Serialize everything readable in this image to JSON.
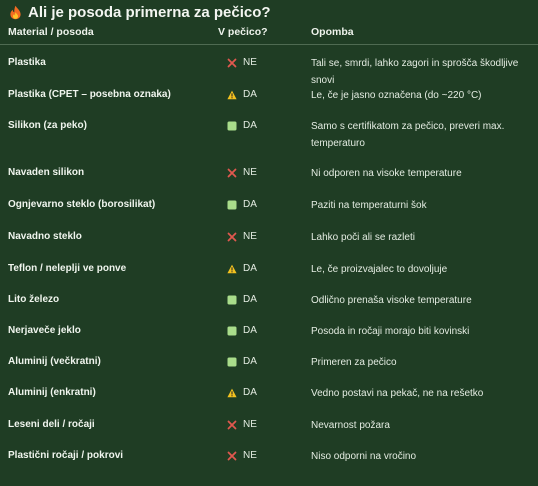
{
  "title": "Ali je posoda primerna za pečico?",
  "columns": {
    "material": "Material / posoda",
    "oven": "V pečico?",
    "note": "Opomba"
  },
  "colors": {
    "background": "#1f3d24",
    "no": "#e0584f",
    "warn": "#f3c21f",
    "yes": "#a9dd8b"
  },
  "rows": [
    {
      "material": "Plastika",
      "status_icon": "cross-icon",
      "status": "NE",
      "note": "Tali se, smrdi, lahko zagori in sprošča škodljive snovi"
    },
    {
      "material": "Plastika (CPET – posebna oznaka)",
      "status_icon": "warning-icon",
      "status": "DA",
      "note": "Le, če je jasno označena (do ~220 °C)"
    },
    {
      "material": "Silikon (za peko)",
      "status_icon": "check-square-icon",
      "status": "DA",
      "note": "Samo s certifikatom za pečico, preveri max. temperaturo"
    },
    {
      "material": "Navaden silikon",
      "status_icon": "cross-icon",
      "status": "NE",
      "note": "Ni odporen na visoke temperature"
    },
    {
      "material": "Ognjevarno steklo (borosilikat)",
      "status_icon": "check-square-icon",
      "status": "DA",
      "note": "Paziti na temperaturni šok"
    },
    {
      "material": "Navadno steklo",
      "status_icon": "cross-icon",
      "status": "NE",
      "note": "Lahko poči ali se razleti"
    },
    {
      "material": "Teflon / neleplji ve ponve",
      "status_icon": "warning-icon",
      "status": "DA",
      "note": "Le, če proizvajalec to dovoljuje"
    },
    {
      "material": "Lito železo",
      "status_icon": "check-square-icon",
      "status": "DA",
      "note": "Odlično prenaša visoke temperature"
    },
    {
      "material": "Nerjaveče jeklo",
      "status_icon": "check-square-icon",
      "status": "DA",
      "note": "Posoda in ročaji morajo biti kovinski"
    },
    {
      "material": "Aluminij (večkratni)",
      "status_icon": "check-square-icon",
      "status": "DA",
      "note": "Primeren za pečico"
    },
    {
      "material": "Aluminij (enkratni)",
      "status_icon": "warning-icon",
      "status": "DA",
      "note": "Vedno postavi na pekač, ne na rešetko"
    },
    {
      "material": "Leseni deli / ročaji",
      "status_icon": "cross-icon",
      "status": "NE",
      "note": "Nevarnost požara"
    },
    {
      "material": "Plastični ročaji / pokrovi",
      "status_icon": "cross-icon",
      "status": "NE",
      "note": "Niso odporni na vročino"
    }
  ]
}
